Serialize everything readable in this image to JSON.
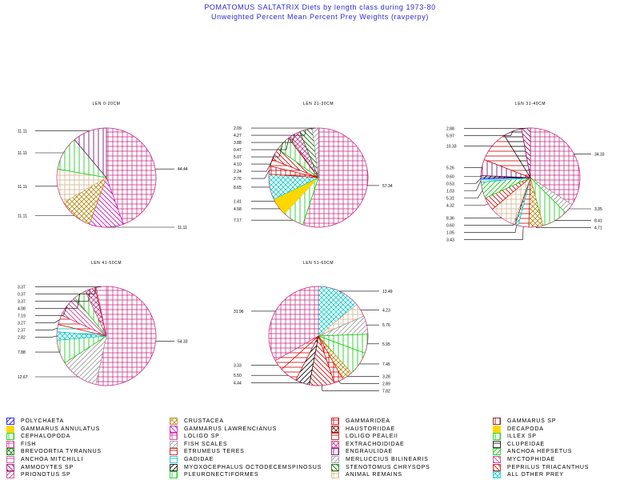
{
  "title": "POMATOMUS SALTATRIX Diets by length class during 1973-80",
  "subtitle": "Unweighted Percent Mean Percent Prey  Weights (ravperpy)",
  "palette": {
    "POLYCHAETA": "#0000ff",
    "GAMMARUS ANNULATUS": "#ffd700",
    "CEPHALOPODA": "#00cc00",
    "FISH": "#cc3388",
    "BREVOORTIA TYRANNUS": "#007700",
    "ANCHOA MITCHILLI": "#cc3388",
    "AMMODYTES SP": "#990066",
    "PRIONOTUS SP": "#cc3388",
    "CRUSTACEA": "#b8860b",
    "GAMMARUS LAWRENCIANUS": "#cc00cc",
    "LOLIGO SP": "#cc3388",
    "FISH SCALES": "#999999",
    "ETRUMEUS TERES": "#cc0000",
    "GADIDAE": "#00bbbb",
    "MYOXOCEPHALUS OCTODECEMSPINOSUS": "#000000",
    "PLEURONECTIFORMES": "#00cc00",
    "GAMMARIDEA": "#cc0000",
    "HAUSTORIIDAE": "#800000",
    "LOLIGO PEALEII": "#cc0000",
    "EXTRACHOIDIDAE": "#cc3388",
    "ENGRAULIDAE": "#660066",
    "MERLUCCIUS BILINEARIS": "#999999",
    "STENOTOMUS CHRYSOPS": "#006600",
    "ANIMAL REMAINS": "#d2b48c",
    "GAMMARUS SP": "#800000",
    "DECAPODA": "#ffd700",
    "ILLEX SP": "#00cc00",
    "CLUPEIDAE": "#000000",
    "ANCHOA HEPSETUS": "#00cc00",
    "MYCTOPHIDAE": "#cc3388",
    "PEPRILUS TRIACANTHUS": "#cc0000",
    "ALL OTHER PREY": "#00cccc"
  },
  "legend": [
    {
      "label": "POLYCHAETA",
      "pattern": "diag"
    },
    {
      "label": "GAMMARUS ANNULATUS",
      "pattern": "solid"
    },
    {
      "label": "CEPHALOPODA",
      "pattern": "vert"
    },
    {
      "label": "FISH",
      "pattern": "cross"
    },
    {
      "label": "BREVOORTIA TYRANNUS",
      "pattern": "xcross"
    },
    {
      "label": "ANCHOA MITCHILLI",
      "pattern": "horiz"
    },
    {
      "label": "AMMODYTES SP",
      "pattern": "adiag"
    },
    {
      "label": "PRIONOTUS SP",
      "pattern": "diag"
    },
    {
      "label": "CRUSTACEA",
      "pattern": "xcross"
    },
    {
      "label": "GAMMARUS LAWRENCIANUS",
      "pattern": "adiag"
    },
    {
      "label": "LOLIGO SP",
      "pattern": "cross"
    },
    {
      "label": "FISH SCALES",
      "pattern": "diag"
    },
    {
      "label": "ETRUMEUS TERES",
      "pattern": "horiz"
    },
    {
      "label": "GADIDAE",
      "pattern": "horiz"
    },
    {
      "label": "MYOXOCEPHALUS OCTODECEMSPINOSUS",
      "pattern": "diag"
    },
    {
      "label": "PLEURONECTIFORMES",
      "pattern": "vert"
    },
    {
      "label": "GAMMARIDEA",
      "pattern": "cross"
    },
    {
      "label": "HAUSTORIIDAE",
      "pattern": "xcross"
    },
    {
      "label": "LOLIGO PEALEII",
      "pattern": "horiz"
    },
    {
      "label": "EXTRACHOIDIDAE",
      "pattern": "xcross"
    },
    {
      "label": "ENGRAULIDAE",
      "pattern": "vert"
    },
    {
      "label": "MERLUCCIUS BILINEARIS",
      "pattern": "diag"
    },
    {
      "label": "STENOTOMUS CHRYSOPS",
      "pattern": "adiag"
    },
    {
      "label": "ANIMAL REMAINS",
      "pattern": "cross"
    },
    {
      "label": "GAMMARUS SP",
      "pattern": "vert"
    },
    {
      "label": "DECAPODA",
      "pattern": "solid"
    },
    {
      "label": "ILLEX SP",
      "pattern": "vert"
    },
    {
      "label": "CLUPEIDAE",
      "pattern": "horiz"
    },
    {
      "label": "ANCHOA HEPSETUS",
      "pattern": "diag"
    },
    {
      "label": "MYCTOPHIDAE",
      "pattern": "adiag"
    },
    {
      "label": "PEPRILUS TRIACANTHUS",
      "pattern": "adiag"
    },
    {
      "label": "ALL OTHER PREY",
      "pattern": "xcross"
    }
  ],
  "chart_data": [
    {
      "type": "pie",
      "title": "LEN  0-20CM",
      "slices": [
        {
          "label": "FISH",
          "value": 44.44,
          "value_label": "44.44"
        },
        {
          "label": "GAMMARUS LAWRENCIANUS",
          "value": 11.11,
          "value_label": "11.11"
        },
        {
          "label": "CRUSTACEA",
          "value": 11.11,
          "value_label": "11.11"
        },
        {
          "label": "ANIMAL REMAINS",
          "value": 11.11,
          "value_label": "11.11"
        },
        {
          "label": "PLEURONECTIFORMES",
          "value": 11.11,
          "value_label": "11.11"
        },
        {
          "label": "ENGRAULIDAE",
          "value": 11.11,
          "value_label": "11.11"
        }
      ]
    },
    {
      "type": "pie",
      "title": "LEN 21-30CM",
      "slices": [
        {
          "label": "FISH",
          "value": 57.34,
          "value_label": "57.34"
        },
        {
          "label": "CEPHALOPODA",
          "value": 7.17,
          "value_label": "7.17"
        },
        {
          "label": "GAMMARUS ANNULATUS",
          "value": 4.58,
          "value_label": "4.58"
        },
        {
          "label": "DECAPODA",
          "value": 1.41,
          "value_label": "1.41"
        },
        {
          "label": "ALL OTHER PREY",
          "value": 8.65,
          "value_label": "8.65"
        },
        {
          "label": "GAMMARIDEA",
          "value": 2.76,
          "value_label": "2.76"
        },
        {
          "label": "LOLIGO PEALEII",
          "value": 2.24,
          "value_label": "2.24"
        },
        {
          "label": "PEPRILUS TRIACANTHUS",
          "value": 4.1,
          "value_label": "4.10"
        },
        {
          "label": "PLEURONECTIFORMES",
          "value": 5.07,
          "value_label": "5.07"
        },
        {
          "label": "GAMMARUS SP",
          "value": 0.47,
          "value_label": "0.47"
        },
        {
          "label": "EXTRACHOIDIDAE",
          "value": 3.88,
          "value_label": "3.88"
        },
        {
          "label": "STENOTOMUS CHRYSOPS",
          "value": 4.27,
          "value_label": "4.27"
        },
        {
          "label": "MERLUCCIUS BILINEARIS",
          "value": 2.09,
          "value_label": "2.09"
        }
      ]
    },
    {
      "type": "pie",
      "title": "LEN 31-40CM",
      "slices": [
        {
          "label": "FISH",
          "value": 34.33,
          "value_label": "34.33"
        },
        {
          "label": "FISH SCALES",
          "value": 3.35,
          "value_label": "3.35"
        },
        {
          "label": "CEPHALOPODA",
          "value": 8.41,
          "value_label": "8.41"
        },
        {
          "label": "CRUSTACEA",
          "value": 4.71,
          "value_label": "4.71"
        },
        {
          "label": "LOLIGO PEALEII",
          "value": 3.43,
          "value_label": "3.43"
        },
        {
          "label": "ALL OTHER PREY",
          "value": 1.05,
          "value_label": "1.05"
        },
        {
          "label": "GAMMARUS SP",
          "value": 0.6,
          "value_label": "0.60"
        },
        {
          "label": "ANIMAL REMAINS",
          "value": 8.36,
          "value_label": "8.36"
        },
        {
          "label": "PEPRILUS TRIACANTHUS",
          "value": 4.32,
          "value_label": "4.32"
        },
        {
          "label": "ANCHOA HEPSETUS",
          "value": 5.31,
          "value_label": "5.31"
        },
        {
          "label": "GADIDAE",
          "value": 1.03,
          "value_label": "1.03"
        },
        {
          "label": "POLYCHAETA",
          "value": 0.53,
          "value_label": "0.53"
        },
        {
          "label": "MYOXOCEPHALUS OCTODECEMSPINOSUS",
          "value": 0.6,
          "value_label": "0.60"
        },
        {
          "label": "ENGRAULIDAE",
          "value": 5.26,
          "value_label": "5.26"
        },
        {
          "label": "ETRUMEUS TERES",
          "value": 10.33,
          "value_label": "10.33"
        },
        {
          "label": "CLUPEIDAE",
          "value": 5.97,
          "value_label": "5.97"
        },
        {
          "label": "AMMODYTES SP",
          "value": 2.88,
          "value_label": "2.88"
        }
      ]
    },
    {
      "type": "pie",
      "title": "LEN 41-50CM",
      "slices": [
        {
          "label": "FISH",
          "value": 54.33,
          "value_label": "54.33"
        },
        {
          "label": "FISH SCALES",
          "value": 12.67,
          "value_label": "12.67"
        },
        {
          "label": "CEPHALOPODA",
          "value": 7.88,
          "value_label": "7.88"
        },
        {
          "label": "ALL OTHER PREY",
          "value": 2.82,
          "value_label": "2.82"
        },
        {
          "label": "GADIDAE",
          "value": 2.37,
          "value_label": "2.37"
        },
        {
          "label": "LOLIGO PEALEII",
          "value": 3.27,
          "value_label": "3.27"
        },
        {
          "label": "MYCTOPHIDAE",
          "value": 7.19,
          "value_label": "7.19"
        },
        {
          "label": "PLEURONECTIFORMES",
          "value": 4.08,
          "value_label": "4.08"
        },
        {
          "label": "EXTRACHOIDIDAE",
          "value": 3.37,
          "value_label": "3.37"
        },
        {
          "label": "ETRUMEUS TERES",
          "value": 0.37,
          "value_label": "0.37"
        },
        {
          "label": "ANCHOA MITCHILLI",
          "value": 3.37,
          "value_label": "3.37"
        }
      ]
    },
    {
      "type": "pie",
      "title": "LEN 51-60CM",
      "slices": [
        {
          "label": "ALL OTHER PREY",
          "value": 13.49,
          "value_label": "13.49"
        },
        {
          "label": "ANIMAL REMAINS",
          "value": 4.23,
          "value_label": "4.23"
        },
        {
          "label": "FISH SCALES",
          "value": 5.76,
          "value_label": "5.76"
        },
        {
          "label": "CEPHALOPODA",
          "value": 5.95,
          "value_label": "5.95"
        },
        {
          "label": "PLEURONECTIFORMES",
          "value": 7.45,
          "value_label": "7.45"
        },
        {
          "label": "CRUSTACEA",
          "value": 3.28,
          "value_label": "3.28"
        },
        {
          "label": "GAMMARIDEA",
          "value": 2.89,
          "value_label": "2.89"
        },
        {
          "label": "PEPRILUS TRIACANTHUS",
          "value": 7.82,
          "value_label": "7.82"
        },
        {
          "label": "MYOXOCEPHALUS OCTODECEMSPINOSUS",
          "value": 4.44,
          "value_label": "4.44"
        },
        {
          "label": "LOLIGO PEALEII",
          "value": 5.5,
          "value_label": "5.50"
        },
        {
          "label": "ETRUMEUS TERES",
          "value": 3.33,
          "value_label": "3.33"
        },
        {
          "label": "FISH",
          "value": 31.96,
          "value_label": "31.96"
        }
      ]
    }
  ]
}
